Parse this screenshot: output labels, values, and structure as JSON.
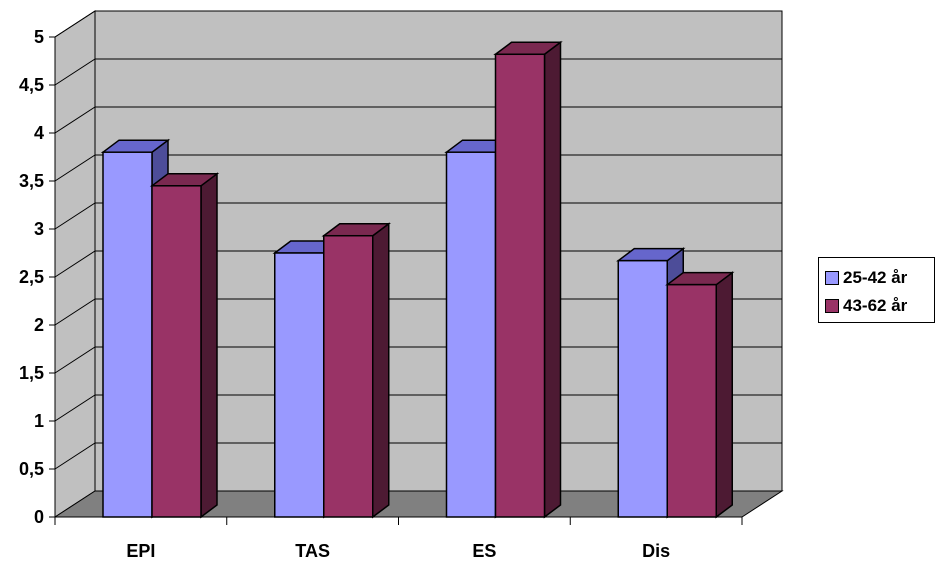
{
  "chart_data": {
    "type": "bar",
    "title": "",
    "xlabel": "",
    "ylabel": "",
    "categories": [
      "EPI",
      "TAS",
      "ES",
      "Dis"
    ],
    "series": [
      {
        "name": "25-42 år",
        "values": [
          3.8,
          2.75,
          3.8,
          2.67
        ]
      },
      {
        "name": "43-62 år",
        "values": [
          3.45,
          2.93,
          4.82,
          2.42
        ]
      }
    ],
    "ylim": [
      0,
      5
    ],
    "y_ticks": [
      "0",
      "0,5",
      "1",
      "1,5",
      "2",
      "2,5",
      "3",
      "3,5",
      "4",
      "4,5",
      "5"
    ],
    "grid": true,
    "style": "3d",
    "legend_position": "right",
    "colors": {
      "series": [
        "#9999ff",
        "#993366"
      ],
      "series_top": [
        "#6666cc",
        "#7a2950"
      ],
      "series_side": [
        "#4d4d99",
        "#4d1a33"
      ],
      "back_wall": "#c0c0c0",
      "floor": "#808080",
      "grid": "#000000"
    }
  }
}
